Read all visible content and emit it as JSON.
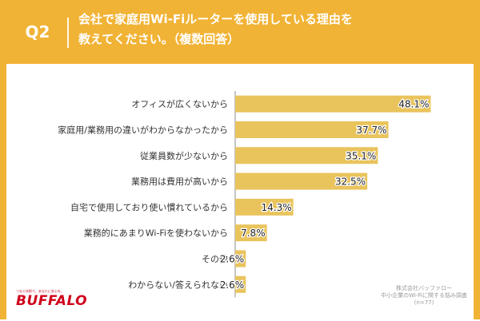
{
  "header": {
    "q_label": "Q2",
    "question_lines": [
      "会社で家庭用Wi-Fiルーターを使用している理由を",
      "教えてください。（複数回答）"
    ]
  },
  "chart_data": {
    "type": "bar",
    "orientation": "horizontal",
    "categories": [
      "オフィスが広くないから",
      "家庭用/業務用の違いがわからなかったから",
      "従業員数が少ないから",
      "業務用は費用が高いから",
      "自宅で使用しており使い慣れているから",
      "業務的にあまりWi-Fiを使わないから",
      "その他",
      "わからない/答えられない"
    ],
    "values": [
      48.1,
      37.7,
      35.1,
      32.5,
      14.3,
      7.8,
      2.6,
      2.6
    ],
    "value_labels": [
      "48.1%",
      "37.7%",
      "35.1%",
      "32.5%",
      "14.3%",
      "7.8%",
      "2.6%",
      "2.6%"
    ],
    "xlim": [
      0,
      50
    ],
    "bar_color": "#E9C45C",
    "axis_line_color": "#8c8c8c",
    "gridlines": false
  },
  "colors": {
    "header_bg": "#F1B335",
    "header_text": "#ffffff"
  },
  "footer": {
    "source_lines": [
      "株式会社バッファロー",
      "中小企業のWi-Fiに関する悩み調査",
      "(n=77)"
    ],
    "brand_tagline": "つなぐ技術で、あなたに安心を。",
    "brand": "BUFFALO"
  }
}
